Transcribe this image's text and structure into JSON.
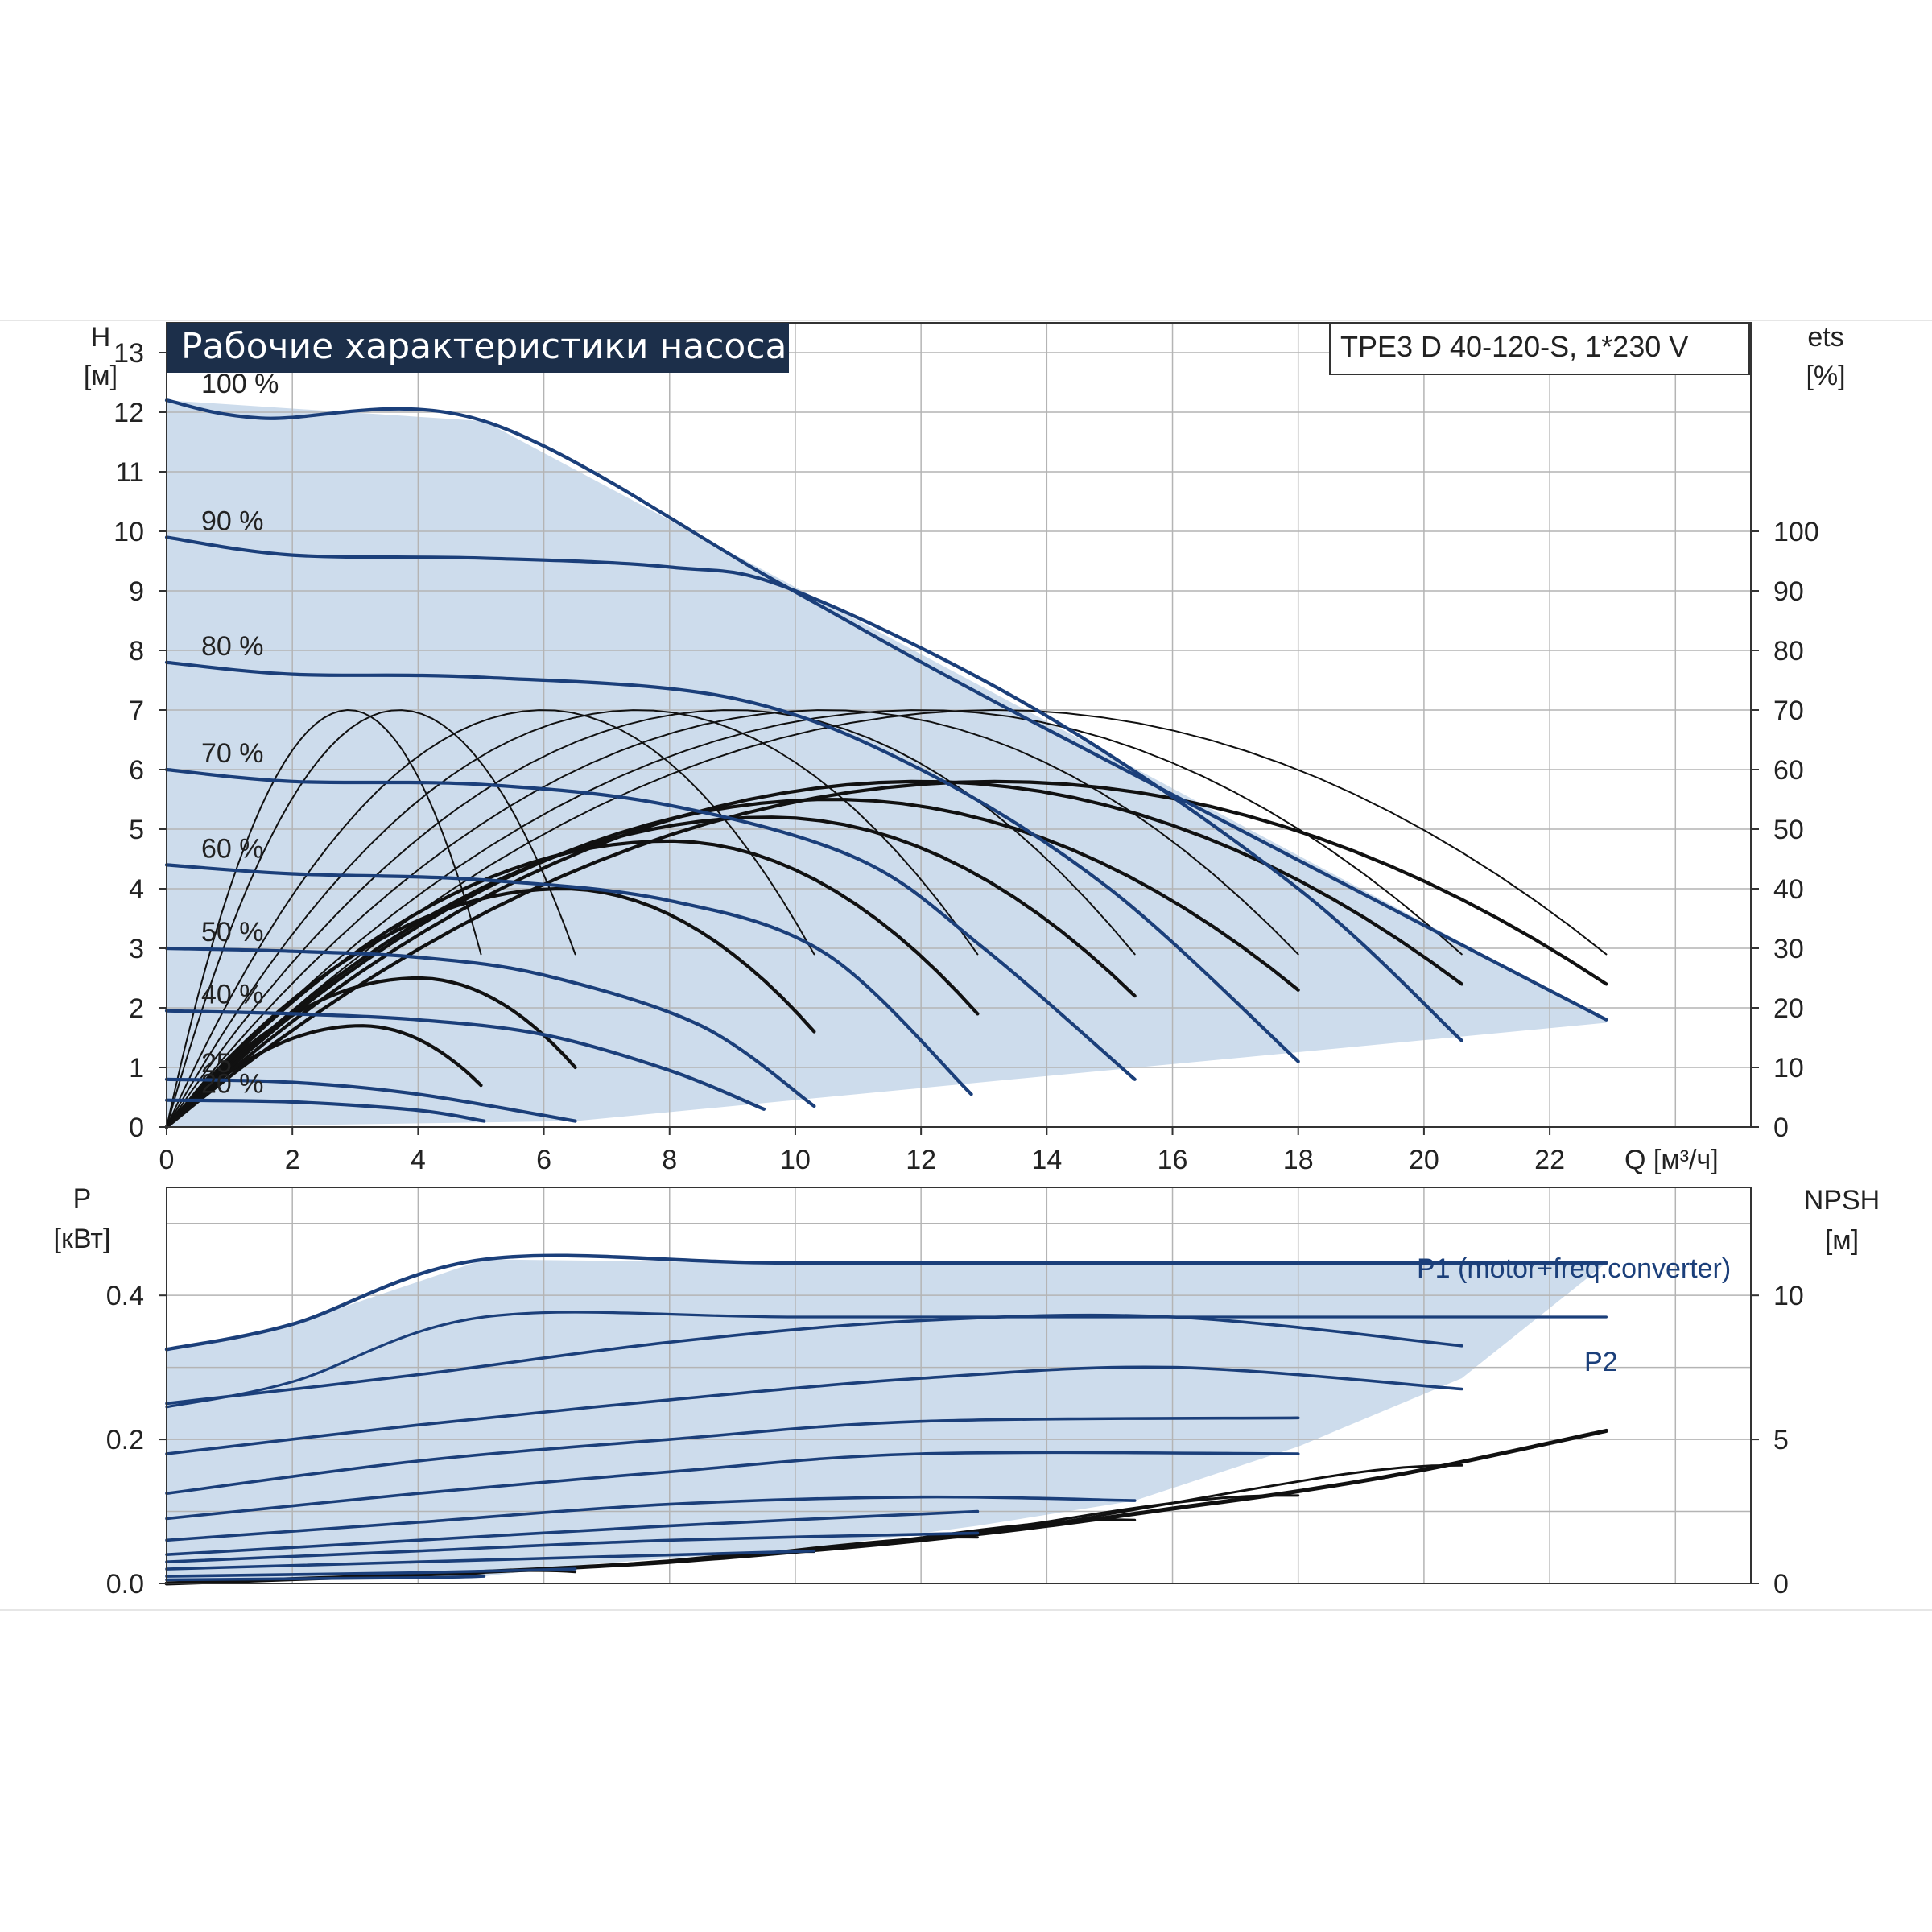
{
  "chart_data": [
    {
      "type": "line",
      "title": "Рабочие характеристики насоса",
      "model": "TPE3 D 40-120-S, 1*230 V",
      "xlabel": "Q [м³/ч]",
      "ylabel": "H",
      "ylabel_unit": "[м]",
      "y2label": "ets",
      "y2label_unit": "[%]",
      "xlim": [
        0,
        25.2
      ],
      "ylim": [
        0,
        13.5
      ],
      "x_ticks": [
        "0",
        "2",
        "4",
        "6",
        "8",
        "10",
        "12",
        "14",
        "16",
        "18",
        "20",
        "22"
      ],
      "y_ticks": [
        "0",
        "1",
        "2",
        "3",
        "4",
        "5",
        "6",
        "7",
        "8",
        "9",
        "10",
        "11",
        "12",
        "13"
      ],
      "y2_ticks": [
        "0",
        "10",
        "20",
        "30",
        "40",
        "50",
        "60",
        "70",
        "80",
        "90",
        "100"
      ],
      "grid": true,
      "colors": {
        "head": "#1b3f7a",
        "efficiency": "#111111",
        "area": "#cddcec",
        "grid": "#b4b4b4"
      },
      "operating_area_boundary": {
        "x": [
          0,
          5.05,
          22.9,
          22.9,
          6.5,
          0
        ],
        "y": [
          12.2,
          11.85,
          1.8,
          1.75,
          0.1,
          0
        ]
      },
      "speed_curves": [
        {
          "label": "100 %",
          "x": [
            0,
            1.5,
            5.05,
            9.8,
            13.6,
            22.9
          ],
          "y": [
            12.2,
            11.9,
            11.85,
            9.1,
            6.9,
            1.8
          ]
        },
        {
          "label": "90 %",
          "x": [
            0,
            2,
            5,
            8,
            10,
            14,
            18,
            20.6
          ],
          "y": [
            9.9,
            9.6,
            9.55,
            9.4,
            9.0,
            6.9,
            4.0,
            1.45
          ]
        },
        {
          "label": "80 %",
          "x": [
            0,
            2,
            5,
            9,
            12,
            15,
            18
          ],
          "y": [
            7.8,
            7.6,
            7.55,
            7.2,
            6.0,
            4.0,
            1.1
          ]
        },
        {
          "label": "70 %",
          "x": [
            0,
            2,
            5,
            8,
            11,
            13,
            15.4
          ],
          "y": [
            6.0,
            5.8,
            5.75,
            5.4,
            4.5,
            3.0,
            0.8
          ]
        },
        {
          "label": "60 %",
          "x": [
            0,
            2,
            5,
            8,
            10.5,
            12.8
          ],
          "y": [
            4.4,
            4.25,
            4.15,
            3.8,
            2.9,
            0.55
          ]
        },
        {
          "label": "50 %",
          "x": [
            0,
            2,
            4,
            6,
            8.5,
            10.3
          ],
          "y": [
            3.0,
            2.95,
            2.85,
            2.55,
            1.7,
            0.35
          ]
        },
        {
          "label": "40 %",
          "x": [
            0,
            2,
            4,
            6,
            8,
            9.5
          ],
          "y": [
            1.95,
            1.9,
            1.8,
            1.55,
            0.95,
            0.3
          ]
        },
        {
          "label": "25",
          "x": [
            0,
            2,
            4,
            6.5
          ],
          "y": [
            0.8,
            0.75,
            0.55,
            0.1
          ]
        },
        {
          "label": "20 %",
          "x": [
            0,
            2,
            4,
            5.05
          ],
          "y": [
            0.45,
            0.42,
            0.28,
            0.1
          ]
        }
      ],
      "efficiency_peaks_pct": [
        {
          "peak_x": 2.9,
          "peak_eta": 70,
          "end_x": 5.0,
          "end_eta": 29
        },
        {
          "peak_x": 3.7,
          "peak_eta": 70,
          "end_x": 6.5,
          "end_eta": 29
        },
        {
          "peak_x": 6.0,
          "peak_eta": 70,
          "end_x": 10.3,
          "end_eta": 29
        },
        {
          "peak_x": 7.5,
          "peak_eta": 70,
          "end_x": 12.9,
          "end_eta": 29
        },
        {
          "peak_x": 9.0,
          "peak_eta": 70,
          "end_x": 15.4,
          "end_eta": 29
        },
        {
          "peak_x": 10.5,
          "peak_eta": 70,
          "end_x": 18.0,
          "end_eta": 29
        },
        {
          "peak_x": 12.0,
          "peak_eta": 70,
          "end_x": 20.6,
          "end_eta": 29
        },
        {
          "peak_x": 13.2,
          "peak_eta": 70,
          "end_x": 22.9,
          "end_eta": 29
        },
        {
          "peak_x": 3.1,
          "peak_eta": 17,
          "end_x": 5.0,
          "end_eta": 7
        },
        {
          "peak_x": 4.0,
          "peak_eta": 25,
          "end_x": 6.5,
          "end_eta": 10
        },
        {
          "peak_x": 6.3,
          "peak_eta": 40,
          "end_x": 10.3,
          "end_eta": 16
        },
        {
          "peak_x": 8.0,
          "peak_eta": 48,
          "end_x": 12.9,
          "end_eta": 19
        },
        {
          "peak_x": 9.6,
          "peak_eta": 52,
          "end_x": 15.4,
          "end_eta": 22
        },
        {
          "peak_x": 10.6,
          "peak_eta": 55,
          "end_x": 18.0,
          "end_eta": 23
        },
        {
          "peak_x": 12.0,
          "peak_eta": 58,
          "end_x": 20.6,
          "end_eta": 24
        },
        {
          "peak_x": 13.2,
          "peak_eta": 58,
          "end_x": 22.9,
          "end_eta": 24
        }
      ]
    },
    {
      "type": "line",
      "ylabel": "P",
      "ylabel_unit": "[кВт]",
      "y2label": "NPSH",
      "y2label_unit": "[м]",
      "xlim": [
        0,
        25.2
      ],
      "ylim": [
        0,
        0.55
      ],
      "y2lim": [
        0,
        13.75
      ],
      "y_ticks": [
        "0.0",
        "0.2",
        "0.4"
      ],
      "y2_ticks": [
        "0",
        "5",
        "10"
      ],
      "grid": true,
      "series": [
        {
          "name": "P1 (motor+freq.converter)",
          "x": [
            0,
            2,
            5.05,
            9.8,
            16,
            22.9
          ],
          "y": [
            0.325,
            0.36,
            0.45,
            0.445,
            0.445,
            0.445
          ]
        },
        {
          "name": "P2",
          "x": [
            0,
            2,
            5.05,
            10,
            16,
            22.9
          ],
          "y": [
            0.245,
            0.28,
            0.37,
            0.37,
            0.37,
            0.37
          ]
        }
      ],
      "speed_power_curves": [
        {
          "x": [
            0,
            4,
            8,
            12,
            16,
            20.6
          ],
          "y": [
            0.25,
            0.29,
            0.335,
            0.365,
            0.37,
            0.33
          ]
        },
        {
          "x": [
            0,
            4,
            8,
            12,
            16,
            20.6
          ],
          "y": [
            0.18,
            0.22,
            0.255,
            0.285,
            0.3,
            0.27
          ]
        },
        {
          "x": [
            0,
            4,
            8,
            12,
            18.0
          ],
          "y": [
            0.125,
            0.17,
            0.2,
            0.225,
            0.23
          ]
        },
        {
          "x": [
            0,
            4,
            8,
            12,
            18.0
          ],
          "y": [
            0.09,
            0.125,
            0.155,
            0.18,
            0.18
          ]
        },
        {
          "x": [
            0,
            4,
            8,
            12,
            15.4
          ],
          "y": [
            0.06,
            0.085,
            0.11,
            0.12,
            0.115
          ]
        },
        {
          "x": [
            0,
            4,
            8,
            12.9
          ],
          "y": [
            0.04,
            0.06,
            0.08,
            0.1
          ]
        },
        {
          "x": [
            0,
            4,
            8,
            12.9
          ],
          "y": [
            0.03,
            0.045,
            0.06,
            0.07
          ]
        },
        {
          "x": [
            0,
            4,
            10.3
          ],
          "y": [
            0.02,
            0.03,
            0.045
          ]
        },
        {
          "x": [
            0,
            4,
            6.5
          ],
          "y": [
            0.01,
            0.015,
            0.02
          ]
        },
        {
          "x": [
            0,
            4,
            5.05
          ],
          "y": [
            0.005,
            0.008,
            0.01
          ]
        }
      ],
      "npsh": {
        "x": [
          0,
          2,
          4,
          6,
          8,
          10,
          12,
          14,
          16,
          18,
          20,
          22.9
        ],
        "y": [
          0,
          0.15,
          0.3,
          0.5,
          0.75,
          1.1,
          1.5,
          2.0,
          2.6,
          3.2,
          3.95,
          5.3
        ]
      }
    }
  ]
}
